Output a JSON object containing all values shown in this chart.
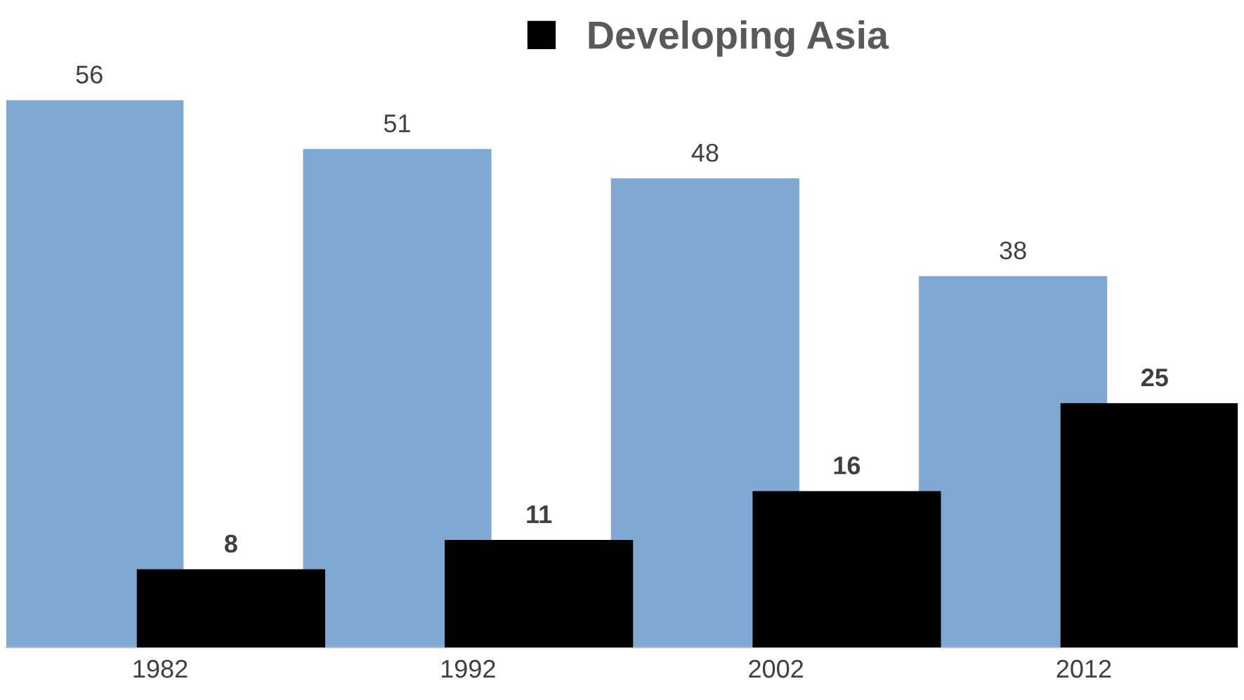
{
  "chart_data": {
    "type": "bar",
    "categories": [
      "1982",
      "1992",
      "2002",
      "2012"
    ],
    "series": [
      {
        "color": "#7fa9d3",
        "values": [
          56,
          51,
          48,
          38
        ]
      },
      {
        "name": "Developing Asia",
        "color": "#000000",
        "values": [
          8,
          11,
          16,
          25
        ]
      }
    ],
    "data_labels": true,
    "legend": "top",
    "grid": false,
    "tick_labels": "x"
  }
}
